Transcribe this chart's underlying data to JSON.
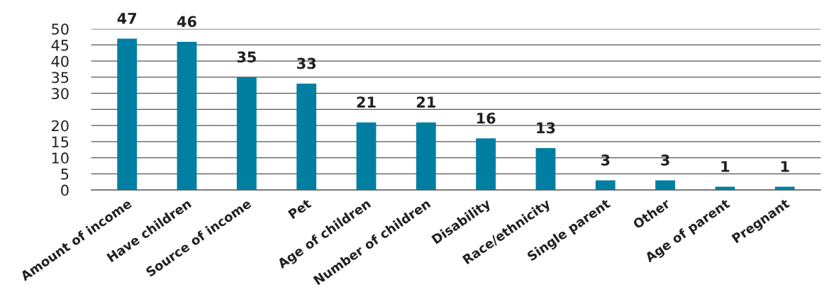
{
  "chart_data": {
    "type": "bar",
    "categories": [
      "Amount of income",
      "Have children",
      "Source of income",
      "Pet",
      "Age of children",
      "Number of children",
      "Disability",
      "Race/ethnicity",
      "Single parent",
      "Other",
      "Age of parent",
      "Pregnant"
    ],
    "values": [
      47,
      46,
      35,
      33,
      21,
      21,
      16,
      13,
      3,
      3,
      1,
      1
    ],
    "color": "#007fa3",
    "ylim": [
      0,
      50
    ],
    "yticks": [
      0,
      5,
      10,
      15,
      20,
      {
        "value": 25,
        "label": null
      },
      30,
      35,
      40,
      45,
      50
    ],
    "grid": "y",
    "data_labels": true
  }
}
